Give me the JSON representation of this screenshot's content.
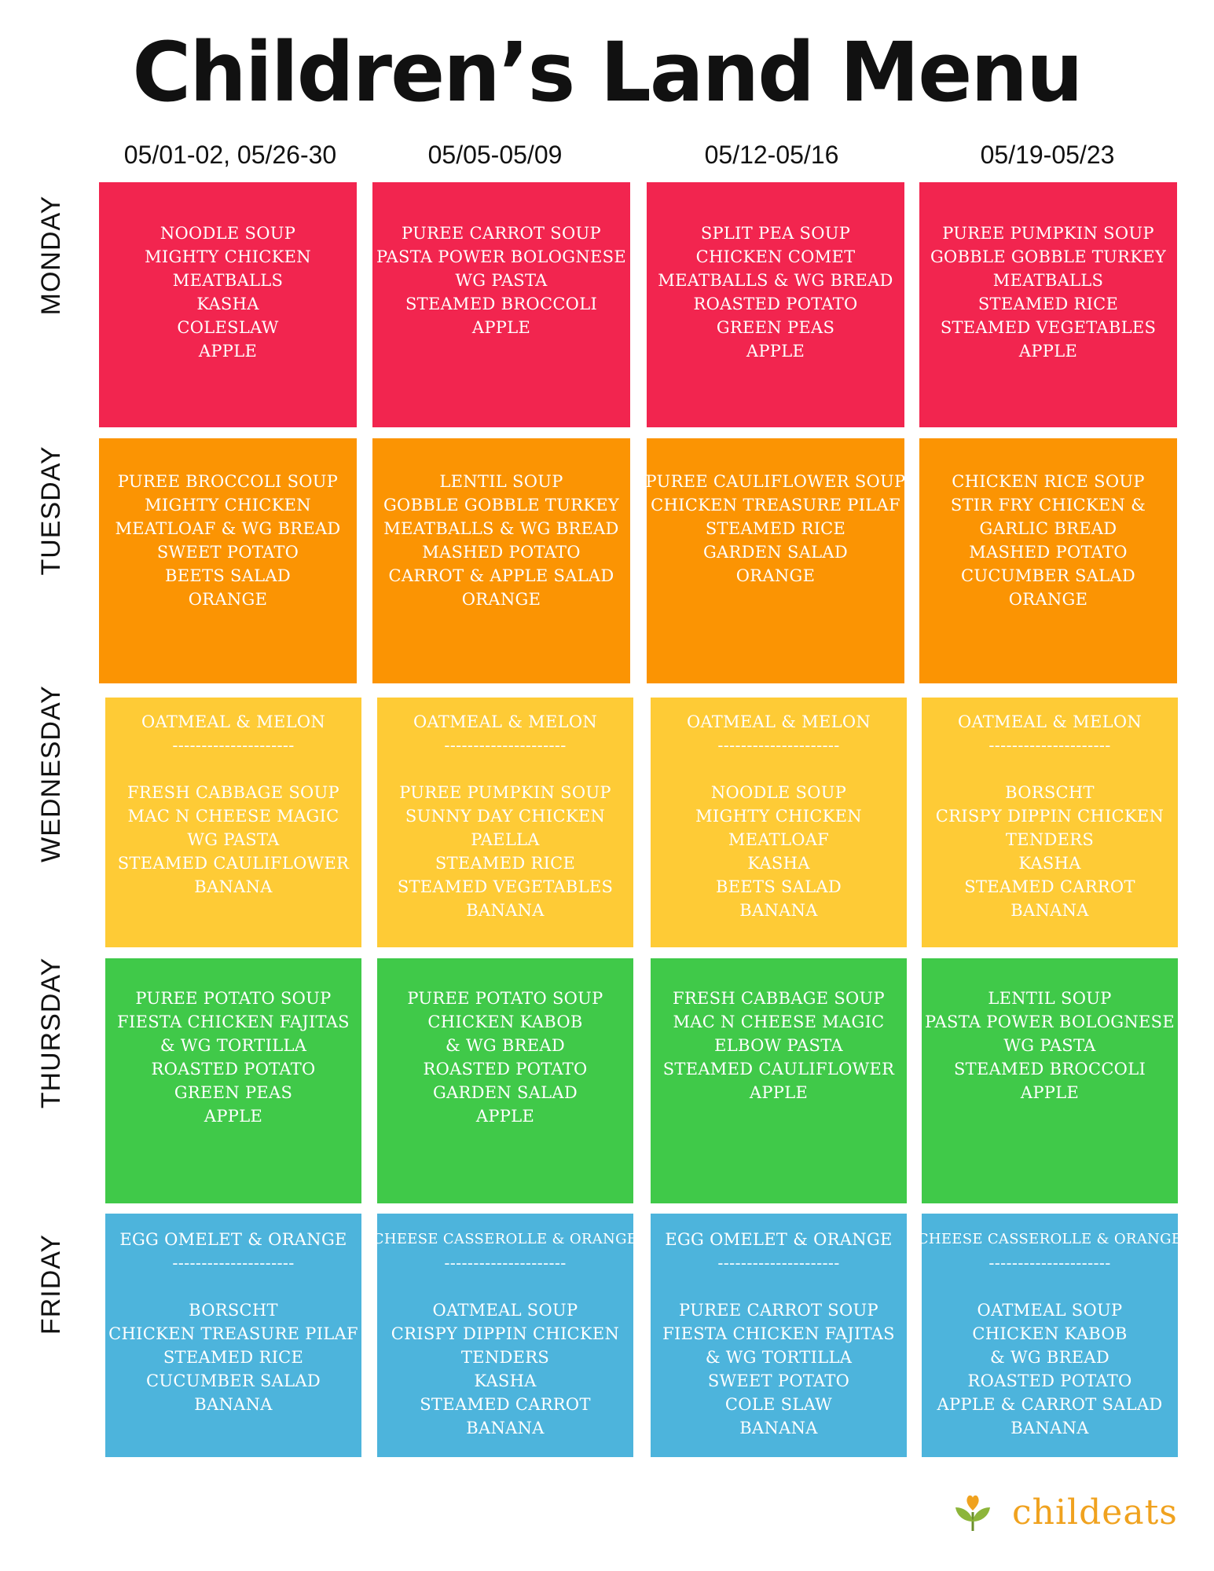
{
  "title": "Children’s Land Menu",
  "columns": [
    "05/01-02, 05/26-30",
    "05/05-05/09",
    "05/12-05/16",
    "05/19-05/23"
  ],
  "days": [
    "MONDAY",
    "TUESDAY",
    "WEDNESDAY",
    "THURSDAY",
    "FRIDAY"
  ],
  "colors": {
    "monday": "#f2254f",
    "tuesday": "#fb9403",
    "wednesday": "#fecb36",
    "thursday": "#40c949",
    "friday": "#4db4dc",
    "logo_text": "#f0a21f"
  },
  "menu": {
    "monday": [
      [
        "NOODLE SOUP",
        "MIGHTY CHICKEN",
        "MEATBALLS",
        "KASHA",
        "COLESLAW",
        "APPLE"
      ],
      [
        "PUREE CARROT SOUP",
        "PASTA POWER BOLOGNESE",
        "WG PASTA",
        "STEAMED BROCCOLI",
        "APPLE"
      ],
      [
        "SPLIT PEA SOUP",
        "CHICKEN COMET",
        "MEATBALLS & WG BREAD",
        "ROASTED POTATO",
        "GREEN PEAS",
        "APPLE"
      ],
      [
        "PUREE  PUMPKIN SOUP",
        "GOBBLE GOBBLE TURKEY",
        "MEATBALLS",
        "STEAMED RICE",
        "STEAMED VEGETABLES",
        "APPLE"
      ]
    ],
    "tuesday": [
      [
        "PUREE BROCCOLI SOUP",
        "MIGHTY CHICKEN",
        "MEATLOAF & WG BREAD",
        "SWEET POTATO",
        "BEETS SALAD",
        "ORANGE"
      ],
      [
        "LENTIL SOUP",
        "GOBBLE GOBBLE TURKEY",
        "MEATBALLS & WG BREAD",
        "MASHED POTATO",
        "CARROT & APPLE SALAD",
        "ORANGE"
      ],
      [
        "PUREE CAULIFLOWER SOUP",
        "CHICKEN TREASURE PILAF",
        "STEAMED RICE",
        "GARDEN SALAD",
        "ORANGE"
      ],
      [
        "CHICKEN RICE SOUP",
        "STIR FRY CHICKEN  &",
        "GARLIC BREAD",
        "MASHED POTATO",
        "CUCUMBER SALAD",
        "ORANGE"
      ]
    ],
    "wednesday": [
      [
        "OATMEAL & MELON",
        "---------------------",
        "",
        "FRESH CABBAGE SOUP",
        "MAC N CHEESE MAGIC",
        "WG PASTA",
        "STEAMED CAULIFLOWER",
        "BANANA"
      ],
      [
        "OATMEAL & MELON",
        "---------------------",
        "",
        "PUREE PUMPKIN SOUP",
        "SUNNY DAY CHICKEN",
        "PAELLA",
        "STEAMED RICE",
        "STEAMED VEGETABLES",
        "BANANA"
      ],
      [
        "OATMEAL & MELON",
        "---------------------",
        "",
        "NOODLE SOUP",
        "MIGHTY CHICKEN",
        "MEATLOAF",
        "KASHA",
        "BEETS SALAD",
        "BANANA"
      ],
      [
        "OATMEAL & MELON",
        "---------------------",
        "",
        "BORSCHT",
        "CRISPY DIPPIN CHICKEN",
        "TENDERS",
        "KASHA",
        "STEAMED CARROT",
        "BANANA"
      ]
    ],
    "thursday": [
      [
        "PUREE POTATO SOUP",
        "FIESTA CHICKEN FAJITAS",
        "& WG TORTILLA",
        "ROASTED  POTATO",
        "GREEN PEAS",
        "APPLE"
      ],
      [
        "PUREE POTATO SOUP",
        "CHICKEN KABOB",
        "& WG BREAD",
        "ROASTED  POTATO",
        "GARDEN SALAD",
        "APPLE"
      ],
      [
        "FRESH CABBAGE SOUP",
        "MAC N CHEESE MAGIC",
        "ELBOW PASTA",
        "STEAMED CAULIFLOWER",
        "APPLE"
      ],
      [
        "LENTIL SOUP",
        "PASTA POWER BOLOGNESE",
        "WG PASTA",
        "STEAMED BROCCOLI",
        "APPLE"
      ]
    ],
    "friday": [
      [
        "EGG OMELET & ORANGE",
        "---------------------",
        "",
        "BORSCHT",
        "CHICKEN TREASURE PILAF",
        "STEAMED RICE",
        "CUCUMBER SALAD",
        "BANANA"
      ],
      [
        "CHEESE CASSEROLLE & ORANGE",
        "---------------------",
        "",
        "OATMEAL SOUP",
        "CRISPY DIPPIN CHICKEN",
        "TENDERS",
        "KASHA",
        "STEAMED CARROT",
        "BANANA"
      ],
      [
        "EGG OMELET & ORANGE",
        "---------------------",
        "",
        "PUREE CARROT SOUP",
        "FIESTA CHICKEN FAJITAS",
        "& WG TORTILLA",
        "SWEET POTATO",
        "COLE SLAW",
        "BANANA"
      ],
      [
        "CHEESE CASSEROLLE & ORANGE",
        "---------------------",
        "",
        "OATMEAL SOUP",
        "CHICKEN KABOB",
        "& WG BREAD",
        "ROASTED POTATO",
        "APPLE & CARROT SALAD",
        "BANANA"
      ]
    ]
  },
  "logo": {
    "text": "childeats",
    "icon": "sprout-heart-icon"
  }
}
